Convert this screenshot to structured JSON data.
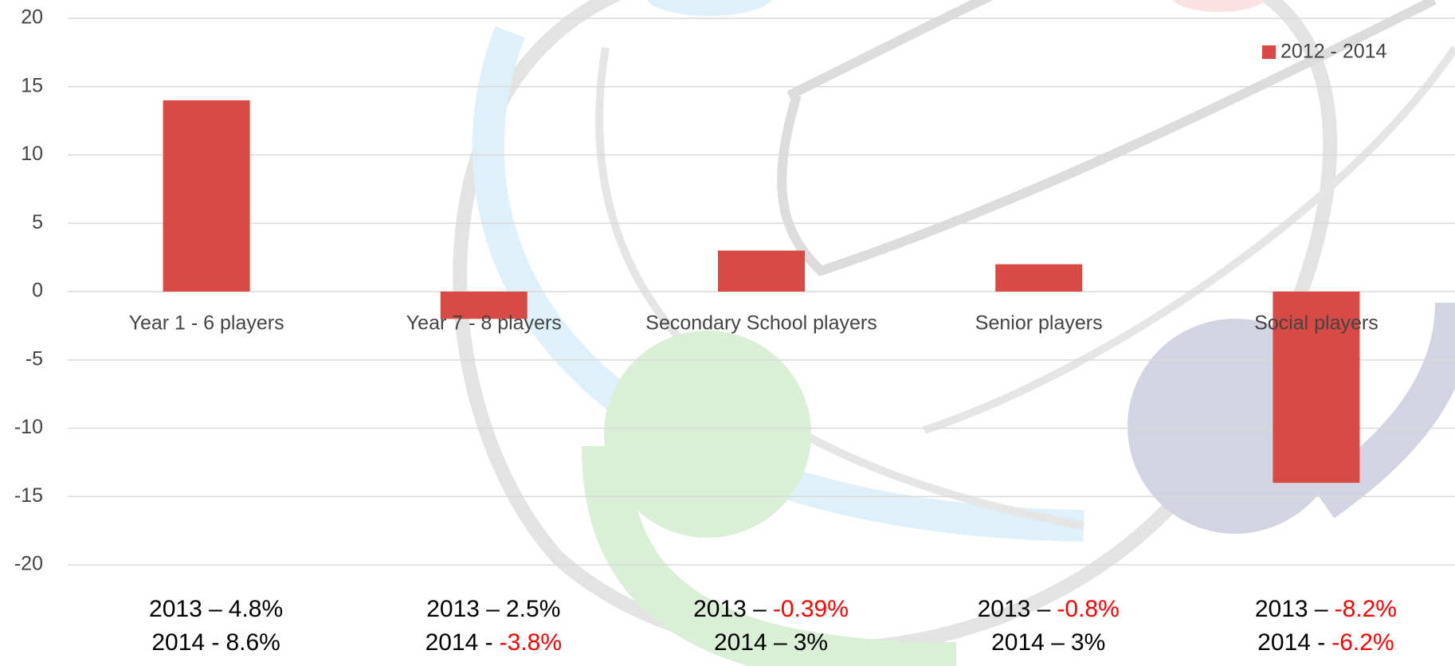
{
  "chart_data": {
    "type": "bar",
    "categories": [
      "Year 1 - 6 players",
      "Year 7 - 8 players",
      "Secondary School players",
      "Senior players",
      "Social players"
    ],
    "series": [
      {
        "name": "2012 - 2014",
        "color": "#d84a43",
        "values": [
          14,
          -2,
          3,
          2,
          -14
        ]
      }
    ],
    "ylim": [
      -20,
      20
    ],
    "yticks": [
      -20,
      -15,
      -10,
      -5,
      0,
      5,
      10,
      15,
      20
    ],
    "grid": true,
    "legend": "top-right",
    "negative_color": "#ff0000",
    "annotations": [
      [
        {
          "year": "2013 –",
          "change": "4.8%"
        },
        {
          "year": "2014 -",
          "change": "8.6%"
        }
      ],
      [
        {
          "year": "2013 –",
          "change": "2.5%"
        },
        {
          "year": "2014 -",
          "change": "-3.8%"
        }
      ],
      [
        {
          "year": "2013 –",
          "change": "-0.39%"
        },
        {
          "year": "2014 –",
          "change": "3%"
        }
      ],
      [
        {
          "year": "2013 –",
          "change": "-0.8%"
        },
        {
          "year": "2014 –",
          "change": "3%"
        }
      ],
      [
        {
          "year": "2013 –",
          "change": "-8.2%"
        },
        {
          "year": "2014 -",
          "change": "-6.2%"
        }
      ]
    ]
  }
}
